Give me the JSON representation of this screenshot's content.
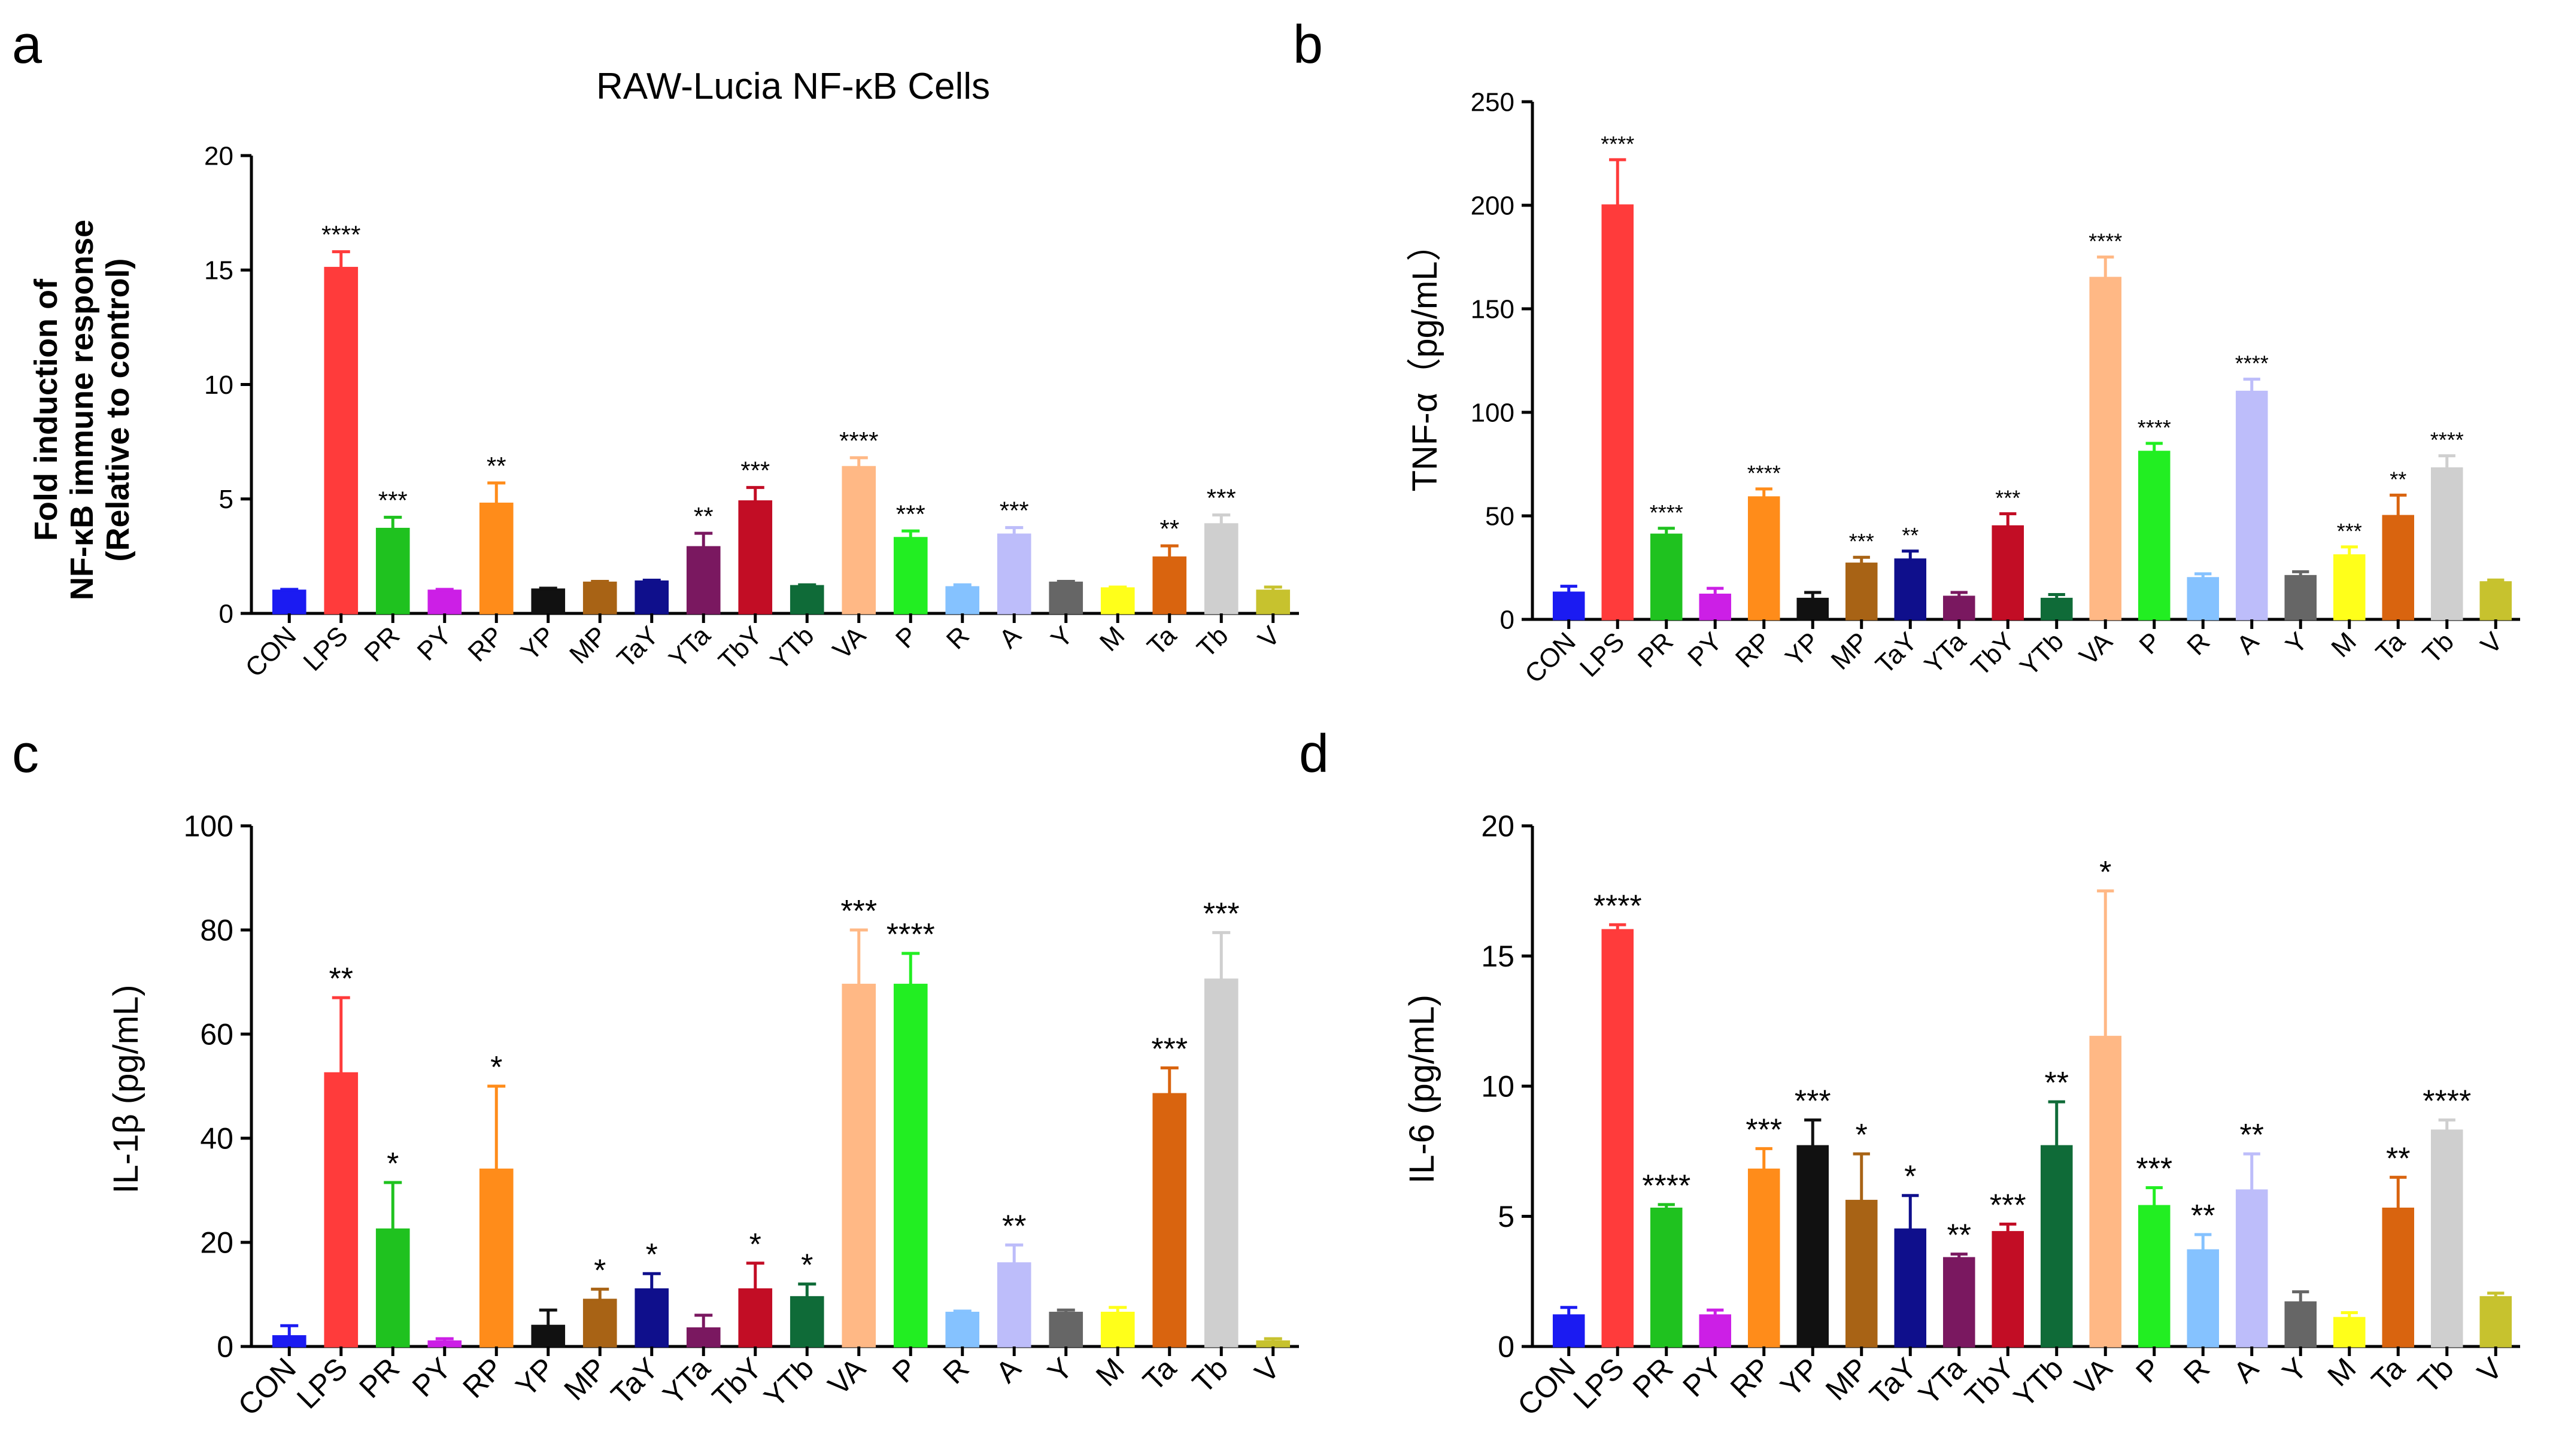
{
  "categories": [
    "CON",
    "LPS",
    "PR",
    "PY",
    "RP",
    "YP",
    "MP",
    "TaY",
    "YTa",
    "TbY",
    "YTb",
    "VA",
    "P",
    "R",
    "A",
    "Y",
    "M",
    "Ta",
    "Tb",
    "V"
  ],
  "colors": [
    "#1b1bf2",
    "#ff3b3b",
    "#1fc21f",
    "#cc1fe6",
    "#ff8c1a",
    "#111111",
    "#a86315",
    "#0f0f8c",
    "#7a1860",
    "#c20d25",
    "#0f6b38",
    "#ffb885",
    "#22ee22",
    "#85c2ff",
    "#bdbdfa",
    "#666666",
    "#ffff1a",
    "#d9640f",
    "#cfcfcf",
    "#c7c22e"
  ],
  "chart_data": [
    {
      "panel": "a",
      "type": "bar",
      "title": "RAW-Lucia NF-κB Cells",
      "ylabel_line1": "Fold induction of",
      "ylabel_line2": "NF-κB immune response",
      "ylabel_line3": "(Relative to control)",
      "ylim": [
        0,
        20
      ],
      "yticks": [
        "0",
        "5",
        "10",
        "15",
        "20"
      ],
      "values": [
        1.0,
        15.1,
        3.7,
        1.0,
        4.8,
        1.05,
        1.35,
        1.4,
        2.9,
        4.9,
        1.2,
        6.4,
        3.3,
        1.15,
        3.45,
        1.35,
        1.1,
        2.45,
        3.9,
        1.0
      ],
      "errors": [
        0.05,
        0.7,
        0.5,
        0.05,
        0.9,
        0.05,
        0.05,
        0.05,
        0.6,
        0.6,
        0.05,
        0.4,
        0.3,
        0.1,
        0.3,
        0.05,
        0.05,
        0.5,
        0.4,
        0.15
      ],
      "significance": [
        "",
        "****",
        "***",
        "",
        "**",
        "",
        "",
        "",
        "**",
        "***",
        "",
        "****",
        "***",
        "",
        "***",
        "",
        "",
        "**",
        "***",
        ""
      ]
    },
    {
      "panel": "b",
      "type": "bar",
      "ylabel": "TNF-α（pg/mL）",
      "ylim": [
        0,
        250
      ],
      "yticks": [
        "0",
        "50",
        "100",
        "150",
        "200",
        "250"
      ],
      "values": [
        13,
        200,
        41,
        12,
        59,
        10,
        27,
        29,
        11,
        45,
        10,
        165,
        81,
        20,
        110,
        21,
        31,
        50,
        73,
        18
      ],
      "errors": [
        3,
        22,
        3,
        3,
        4,
        3,
        3,
        4,
        2,
        6,
        2,
        10,
        4,
        2,
        6,
        2,
        4,
        10,
        6,
        1
      ],
      "significance": [
        "",
        "****",
        "****",
        "",
        "****",
        "",
        "***",
        "**",
        "",
        "***",
        "",
        "****",
        "****",
        "",
        "****",
        "",
        "***",
        "**",
        "****",
        ""
      ]
    },
    {
      "panel": "c",
      "type": "bar",
      "ylabel": "IL-1β (pg/mL)",
      "ylim": [
        0,
        100
      ],
      "yticks": [
        "0",
        "20",
        "40",
        "60",
        "80",
        "100"
      ],
      "values": [
        2,
        52.5,
        22.5,
        1,
        34,
        4,
        9,
        11,
        3.5,
        11,
        9.5,
        69.5,
        69.5,
        6.5,
        16,
        6.5,
        6.5,
        48.5,
        70.5,
        1
      ],
      "errors": [
        2,
        14.5,
        9,
        0.5,
        16,
        3,
        2,
        3,
        2.5,
        5,
        2.5,
        10.5,
        6,
        0.3,
        3.5,
        0.5,
        1,
        5,
        9,
        0.5
      ],
      "significance": [
        "",
        "**",
        "*",
        "",
        "*",
        "",
        "*",
        "*",
        "",
        "*",
        "*",
        "***",
        "****",
        "",
        "**",
        "",
        "",
        "***",
        "***",
        ""
      ]
    },
    {
      "panel": "d",
      "type": "bar",
      "ylabel": "IL-6 (pg/mL)",
      "ylim": [
        0,
        20
      ],
      "yticks": [
        "0",
        "5",
        "10",
        "15",
        "20"
      ],
      "values": [
        1.2,
        16,
        5.3,
        1.2,
        6.8,
        7.7,
        5.6,
        4.5,
        3.4,
        4.4,
        7.7,
        11.9,
        5.4,
        3.7,
        6.0,
        1.7,
        1.1,
        5.3,
        8.3,
        1.9
      ],
      "errors": [
        0.3,
        0.2,
        0.15,
        0.2,
        0.8,
        1.0,
        1.8,
        1.3,
        0.15,
        0.3,
        1.7,
        5.6,
        0.7,
        0.6,
        1.4,
        0.4,
        0.2,
        1.2,
        0.4,
        0.15
      ],
      "significance": [
        "",
        "****",
        "****",
        "",
        "***",
        "***",
        "*",
        "*",
        "**",
        "***",
        "**",
        "*",
        "***",
        "**",
        "**",
        "",
        "",
        "**",
        "****",
        ""
      ]
    }
  ],
  "panel_labels": [
    "a",
    "b",
    "c",
    "d"
  ]
}
